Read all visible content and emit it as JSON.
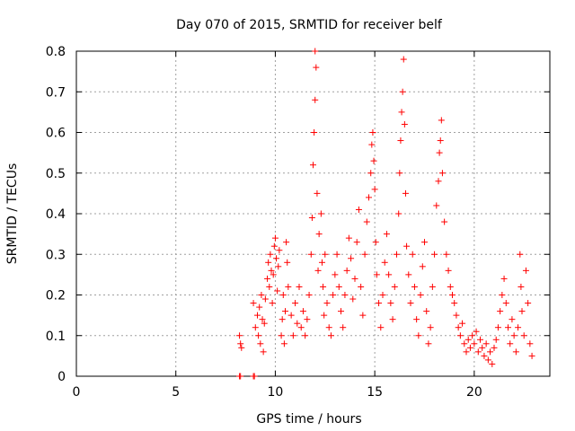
{
  "chart_data": {
    "type": "scatter",
    "title": "Day 070 of 2015, SRMTID for receiver belf",
    "xlabel": "GPS time / hours",
    "ylabel": "SRMTID / TECUs",
    "xlim": [
      0,
      23.8
    ],
    "ylim": [
      0,
      0.8
    ],
    "xticks": [
      0,
      5,
      10,
      15,
      20
    ],
    "yticks": [
      0,
      0.1,
      0.2,
      0.3,
      0.4,
      0.5,
      0.6,
      0.7,
      0.8
    ],
    "xtick_labels": [
      "0",
      "5",
      "10",
      "15",
      "20"
    ],
    "ytick_labels": [
      "0",
      "0.1",
      "0.2",
      "0.3",
      "0.4",
      "0.5",
      "0.6",
      "0.7",
      "0.8"
    ],
    "grid": true,
    "marker": "+",
    "color": "#ff0000",
    "series": [
      {
        "name": "SRMTID",
        "points": [
          [
            8.2,
            0.0
          ],
          [
            8.25,
            0.0
          ],
          [
            8.9,
            0.0
          ],
          [
            8.95,
            0.0
          ],
          [
            8.2,
            0.1
          ],
          [
            8.25,
            0.08
          ],
          [
            8.3,
            0.07
          ],
          [
            8.9,
            0.18
          ],
          [
            9.0,
            0.12
          ],
          [
            9.1,
            0.15
          ],
          [
            9.15,
            0.1
          ],
          [
            9.2,
            0.17
          ],
          [
            9.25,
            0.08
          ],
          [
            9.3,
            0.2
          ],
          [
            9.35,
            0.14
          ],
          [
            9.4,
            0.06
          ],
          [
            9.45,
            0.13
          ],
          [
            9.5,
            0.19
          ],
          [
            9.6,
            0.24
          ],
          [
            9.65,
            0.28
          ],
          [
            9.7,
            0.22
          ],
          [
            9.75,
            0.3
          ],
          [
            9.8,
            0.26
          ],
          [
            9.85,
            0.18
          ],
          [
            9.9,
            0.25
          ],
          [
            9.95,
            0.32
          ],
          [
            10.0,
            0.34
          ],
          [
            10.05,
            0.29
          ],
          [
            10.1,
            0.21
          ],
          [
            10.15,
            0.27
          ],
          [
            10.2,
            0.31
          ],
          [
            10.3,
            0.1
          ],
          [
            10.35,
            0.14
          ],
          [
            10.4,
            0.2
          ],
          [
            10.45,
            0.08
          ],
          [
            10.5,
            0.16
          ],
          [
            10.55,
            0.33
          ],
          [
            10.6,
            0.28
          ],
          [
            10.65,
            0.22
          ],
          [
            10.8,
            0.15
          ],
          [
            10.9,
            0.1
          ],
          [
            11.0,
            0.18
          ],
          [
            11.1,
            0.13
          ],
          [
            11.2,
            0.22
          ],
          [
            11.3,
            0.12
          ],
          [
            11.4,
            0.16
          ],
          [
            11.5,
            0.1
          ],
          [
            11.6,
            0.14
          ],
          [
            11.7,
            0.2
          ],
          [
            11.8,
            0.3
          ],
          [
            11.85,
            0.39
          ],
          [
            11.9,
            0.52
          ],
          [
            11.95,
            0.6
          ],
          [
            12.0,
            0.68
          ],
          [
            12.0,
            0.8
          ],
          [
            12.05,
            0.76
          ],
          [
            12.1,
            0.45
          ],
          [
            12.15,
            0.26
          ],
          [
            12.2,
            0.35
          ],
          [
            12.3,
            0.4
          ],
          [
            12.35,
            0.28
          ],
          [
            12.4,
            0.22
          ],
          [
            12.45,
            0.15
          ],
          [
            12.5,
            0.3
          ],
          [
            12.6,
            0.18
          ],
          [
            12.7,
            0.12
          ],
          [
            12.8,
            0.1
          ],
          [
            12.9,
            0.2
          ],
          [
            13.0,
            0.25
          ],
          [
            13.1,
            0.3
          ],
          [
            13.2,
            0.22
          ],
          [
            13.3,
            0.16
          ],
          [
            13.4,
            0.12
          ],
          [
            13.5,
            0.2
          ],
          [
            13.6,
            0.26
          ],
          [
            13.7,
            0.34
          ],
          [
            13.8,
            0.29
          ],
          [
            13.9,
            0.19
          ],
          [
            14.0,
            0.24
          ],
          [
            14.1,
            0.33
          ],
          [
            14.2,
            0.41
          ],
          [
            14.3,
            0.22
          ],
          [
            14.4,
            0.15
          ],
          [
            14.5,
            0.3
          ],
          [
            14.6,
            0.38
          ],
          [
            14.7,
            0.44
          ],
          [
            14.8,
            0.5
          ],
          [
            14.85,
            0.57
          ],
          [
            14.9,
            0.6
          ],
          [
            14.95,
            0.53
          ],
          [
            15.0,
            0.46
          ],
          [
            15.05,
            0.33
          ],
          [
            15.1,
            0.25
          ],
          [
            15.2,
            0.18
          ],
          [
            15.3,
            0.12
          ],
          [
            15.4,
            0.2
          ],
          [
            15.5,
            0.28
          ],
          [
            15.6,
            0.35
          ],
          [
            15.7,
            0.25
          ],
          [
            15.8,
            0.18
          ],
          [
            15.9,
            0.14
          ],
          [
            16.0,
            0.22
          ],
          [
            16.1,
            0.3
          ],
          [
            16.2,
            0.4
          ],
          [
            16.25,
            0.5
          ],
          [
            16.3,
            0.58
          ],
          [
            16.35,
            0.65
          ],
          [
            16.4,
            0.7
          ],
          [
            16.45,
            0.78
          ],
          [
            16.5,
            0.62
          ],
          [
            16.55,
            0.45
          ],
          [
            16.6,
            0.32
          ],
          [
            16.7,
            0.25
          ],
          [
            16.8,
            0.18
          ],
          [
            16.9,
            0.3
          ],
          [
            17.0,
            0.22
          ],
          [
            17.1,
            0.14
          ],
          [
            17.2,
            0.1
          ],
          [
            17.3,
            0.2
          ],
          [
            17.4,
            0.27
          ],
          [
            17.5,
            0.33
          ],
          [
            17.6,
            0.16
          ],
          [
            17.7,
            0.08
          ],
          [
            17.8,
            0.12
          ],
          [
            17.9,
            0.22
          ],
          [
            18.0,
            0.3
          ],
          [
            18.1,
            0.42
          ],
          [
            18.2,
            0.48
          ],
          [
            18.25,
            0.55
          ],
          [
            18.3,
            0.58
          ],
          [
            18.35,
            0.63
          ],
          [
            18.4,
            0.5
          ],
          [
            18.5,
            0.38
          ],
          [
            18.6,
            0.3
          ],
          [
            18.7,
            0.26
          ],
          [
            18.8,
            0.22
          ],
          [
            18.9,
            0.2
          ],
          [
            19.0,
            0.18
          ],
          [
            19.1,
            0.15
          ],
          [
            19.2,
            0.12
          ],
          [
            19.3,
            0.1
          ],
          [
            19.4,
            0.13
          ],
          [
            19.5,
            0.08
          ],
          [
            19.6,
            0.06
          ],
          [
            19.7,
            0.09
          ],
          [
            19.8,
            0.07
          ],
          [
            19.9,
            0.1
          ],
          [
            20.0,
            0.08
          ],
          [
            20.1,
            0.11
          ],
          [
            20.2,
            0.06
          ],
          [
            20.3,
            0.09
          ],
          [
            20.4,
            0.07
          ],
          [
            20.5,
            0.05
          ],
          [
            20.6,
            0.08
          ],
          [
            20.7,
            0.04
          ],
          [
            20.8,
            0.06
          ],
          [
            20.9,
            0.03
          ],
          [
            21.0,
            0.07
          ],
          [
            21.1,
            0.09
          ],
          [
            21.2,
            0.12
          ],
          [
            21.3,
            0.16
          ],
          [
            21.4,
            0.2
          ],
          [
            21.5,
            0.24
          ],
          [
            21.6,
            0.18
          ],
          [
            21.7,
            0.12
          ],
          [
            21.8,
            0.08
          ],
          [
            21.9,
            0.14
          ],
          [
            22.0,
            0.1
          ],
          [
            22.1,
            0.06
          ],
          [
            22.2,
            0.12
          ],
          [
            22.3,
            0.3
          ],
          [
            22.35,
            0.22
          ],
          [
            22.4,
            0.16
          ],
          [
            22.5,
            0.1
          ],
          [
            22.6,
            0.26
          ],
          [
            22.7,
            0.18
          ],
          [
            22.8,
            0.08
          ],
          [
            22.9,
            0.05
          ]
        ]
      }
    ]
  }
}
